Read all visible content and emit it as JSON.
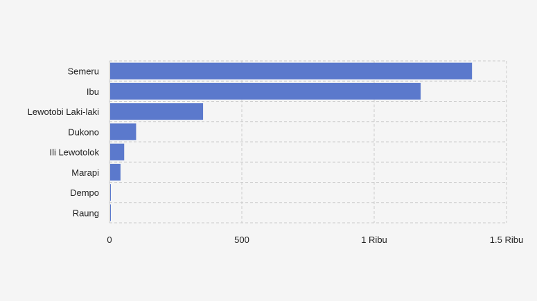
{
  "chart_data": {
    "type": "bar",
    "orientation": "horizontal",
    "categories": [
      "Semeru",
      "Ibu",
      "Lewotobi Laki-laki",
      "Dukono",
      "Ili Lewotolok",
      "Marapi",
      "Dempo",
      "Raung"
    ],
    "values": [
      1367,
      1173,
      351,
      98,
      53,
      39,
      2,
      1
    ],
    "xlim": [
      0,
      1500
    ],
    "x_ticks": [
      {
        "value": 0,
        "label": "0"
      },
      {
        "value": 500,
        "label": "500"
      },
      {
        "value": 1000,
        "label": "1 Ribu"
      },
      {
        "value": 1500,
        "label": "1.5 Ribu"
      }
    ],
    "bar_color": "#5b79cc",
    "grid": true,
    "title": "",
    "xlabel": "",
    "ylabel": ""
  }
}
